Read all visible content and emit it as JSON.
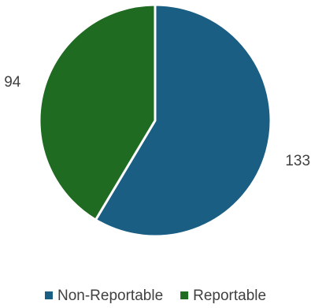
{
  "chart_data": {
    "type": "pie",
    "title": "",
    "slices": [
      {
        "label": "Non-Reportable",
        "value": 133,
        "value_label": "133",
        "color": "#1a5e84"
      },
      {
        "label": "Reportable",
        "value": 94,
        "value_label": "94",
        "color": "#1f6b22"
      }
    ],
    "start": "12 o'clock",
    "direction": "clockwise",
    "legend_position": "bottom"
  }
}
